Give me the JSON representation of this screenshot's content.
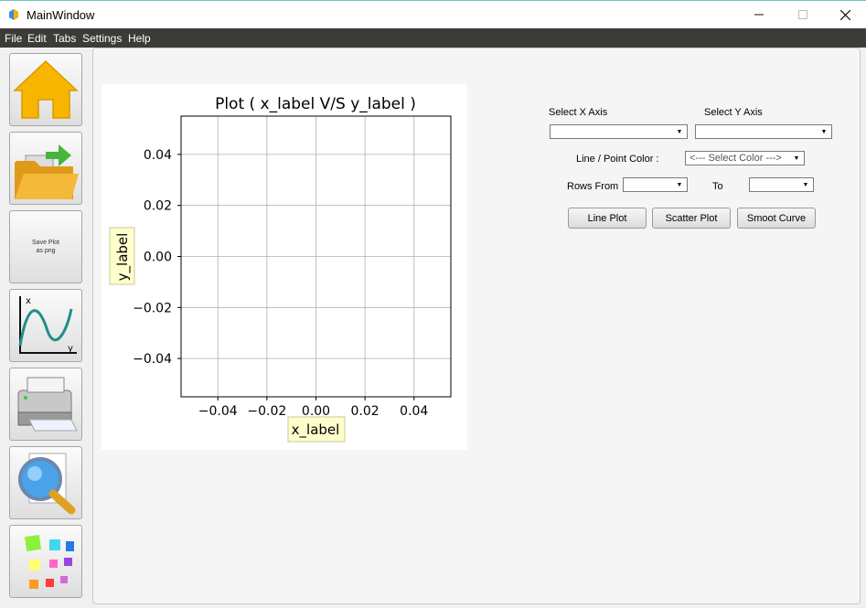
{
  "window": {
    "title": "MainWindow"
  },
  "menu": [
    "File",
    "Edit",
    "Tabs",
    "Settings",
    "Help"
  ],
  "toolbar": {
    "save_label": "Save Plot as png"
  },
  "chart_data": {
    "type": "line",
    "title": "Plot ( x_label V/S y_label )",
    "xlabel": "x_label",
    "ylabel": "y_label",
    "xlim": [
      -0.055,
      0.055
    ],
    "ylim": [
      -0.055,
      0.055
    ],
    "xticks": [
      "−0.04",
      "−0.02",
      "0.00",
      "0.02",
      "0.04"
    ],
    "yticks": [
      "0.04",
      "0.02",
      "0.00",
      "−0.02",
      "−0.04"
    ],
    "grid": true,
    "series": []
  },
  "controls": {
    "select_x_label": "Select X Axis",
    "select_y_label": "Select Y Axis",
    "color_label": "Line / Point Color :",
    "color_placeholder": "<--- Select Color --->",
    "rows_from_label": "Rows From",
    "to_label": "To",
    "line_plot": "Line Plot",
    "scatter_plot": "Scatter Plot",
    "smooth_curve": "Smoot Curve"
  }
}
